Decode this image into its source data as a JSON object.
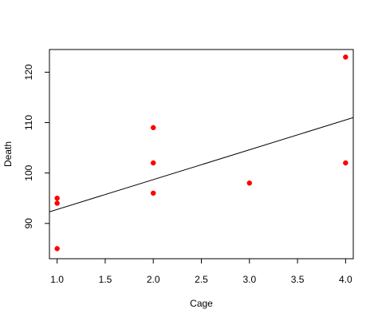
{
  "chart_data": {
    "type": "scatter",
    "title": "",
    "xlabel": "Cage",
    "ylabel": "Death",
    "xlim": [
      0.92,
      4.08
    ],
    "ylim": [
      83.0,
      124.5
    ],
    "x_ticks": [
      1.0,
      1.5,
      2.0,
      2.5,
      3.0,
      3.5,
      4.0
    ],
    "x_tick_labels": [
      "1.0",
      "1.5",
      "2.0",
      "2.5",
      "3.0",
      "3.5",
      "4.0"
    ],
    "y_ticks": [
      90,
      100,
      110,
      120
    ],
    "y_tick_labels": [
      "90",
      "100",
      "110",
      "120"
    ],
    "grid": false,
    "legend": "none",
    "series": [
      {
        "type": "scatter",
        "color": "#ff0000",
        "points": [
          {
            "x": 1,
            "y": 95
          },
          {
            "x": 1,
            "y": 94
          },
          {
            "x": 1,
            "y": 85
          },
          {
            "x": 2,
            "y": 109
          },
          {
            "x": 2,
            "y": 102
          },
          {
            "x": 2,
            "y": 96
          },
          {
            "x": 3,
            "y": 98
          },
          {
            "x": 4,
            "y": 123
          },
          {
            "x": 4,
            "y": 102
          }
        ]
      },
      {
        "type": "line",
        "color": "#000000",
        "kind": "regression",
        "points": [
          {
            "x": 0.92,
            "y": 92.3
          },
          {
            "x": 4.08,
            "y": 111.0
          }
        ]
      }
    ]
  }
}
